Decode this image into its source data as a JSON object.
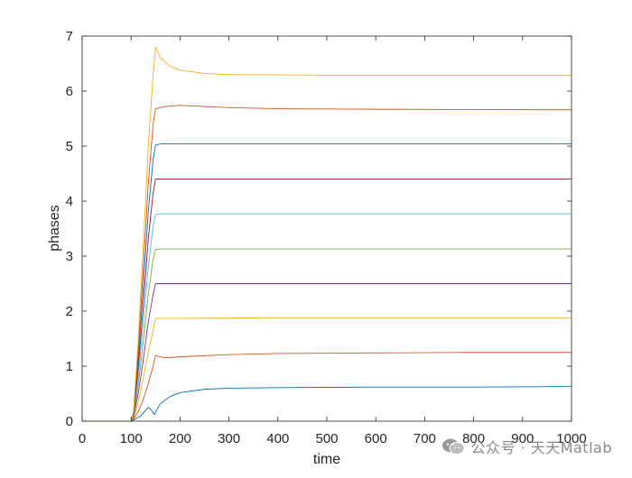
{
  "chart_data": {
    "type": "line",
    "title": "",
    "xlabel": "time",
    "ylabel": "phases",
    "xlim": [
      0,
      1000
    ],
    "ylim": [
      0,
      7
    ],
    "xticks": [
      0,
      100,
      200,
      300,
      400,
      500,
      600,
      700,
      800,
      900,
      1000
    ],
    "yticks": [
      0,
      1,
      2,
      3,
      4,
      5,
      6,
      7
    ],
    "grid": false,
    "legend": "none",
    "series": [
      {
        "color": "#0072BD",
        "points": [
          [
            0,
            0
          ],
          [
            100,
            0
          ],
          [
            105,
            0.02
          ],
          [
            120,
            0.1
          ],
          [
            130,
            0.2
          ],
          [
            135,
            0.25
          ],
          [
            140,
            0.22
          ],
          [
            145,
            0.15
          ],
          [
            148,
            0.12
          ],
          [
            152,
            0.2
          ],
          [
            160,
            0.32
          ],
          [
            180,
            0.45
          ],
          [
            200,
            0.52
          ],
          [
            250,
            0.58
          ],
          [
            300,
            0.6
          ],
          [
            400,
            0.61
          ],
          [
            600,
            0.62
          ],
          [
            800,
            0.62
          ],
          [
            1000,
            0.63
          ]
        ]
      },
      {
        "color": "#D95319",
        "points": [
          [
            0,
            0
          ],
          [
            100,
            0
          ],
          [
            105,
            0.03
          ],
          [
            115,
            0.18
          ],
          [
            125,
            0.4
          ],
          [
            135,
            0.68
          ],
          [
            145,
            1.0
          ],
          [
            150,
            1.2
          ],
          [
            155,
            1.18
          ],
          [
            170,
            1.15
          ],
          [
            200,
            1.17
          ],
          [
            300,
            1.21
          ],
          [
            400,
            1.23
          ],
          [
            600,
            1.24
          ],
          [
            800,
            1.25
          ],
          [
            1000,
            1.25
          ]
        ]
      },
      {
        "color": "#EDB120",
        "points": [
          [
            0,
            0
          ],
          [
            100,
            0
          ],
          [
            105,
            0.05
          ],
          [
            115,
            0.35
          ],
          [
            125,
            0.78
          ],
          [
            135,
            1.25
          ],
          [
            145,
            1.65
          ],
          [
            150,
            1.87
          ],
          [
            160,
            1.87
          ],
          [
            200,
            1.87
          ],
          [
            400,
            1.88
          ],
          [
            700,
            1.88
          ],
          [
            1000,
            1.88
          ]
        ]
      },
      {
        "color": "#7E2F8E",
        "points": [
          [
            0,
            0
          ],
          [
            100,
            0
          ],
          [
            105,
            0.07
          ],
          [
            115,
            0.52
          ],
          [
            125,
            1.12
          ],
          [
            135,
            1.8
          ],
          [
            145,
            2.3
          ],
          [
            150,
            2.5
          ],
          [
            160,
            2.5
          ],
          [
            300,
            2.5
          ],
          [
            600,
            2.5
          ],
          [
            1000,
            2.5
          ]
        ]
      },
      {
        "color": "#77AC30",
        "points": [
          [
            0,
            0
          ],
          [
            100,
            0
          ],
          [
            105,
            0.08
          ],
          [
            115,
            0.68
          ],
          [
            125,
            1.45
          ],
          [
            135,
            2.3
          ],
          [
            145,
            2.95
          ],
          [
            150,
            3.12
          ],
          [
            160,
            3.13
          ],
          [
            400,
            3.13
          ],
          [
            1000,
            3.13
          ]
        ]
      },
      {
        "color": "#4DBEEE",
        "points": [
          [
            0,
            0
          ],
          [
            100,
            0
          ],
          [
            105,
            0.1
          ],
          [
            115,
            0.85
          ],
          [
            125,
            1.78
          ],
          [
            135,
            2.8
          ],
          [
            145,
            3.55
          ],
          [
            150,
            3.76
          ],
          [
            160,
            3.77
          ],
          [
            400,
            3.77
          ],
          [
            1000,
            3.77
          ]
        ]
      },
      {
        "color": "#A2142F",
        "points": [
          [
            0,
            0
          ],
          [
            100,
            0
          ],
          [
            105,
            0.12
          ],
          [
            115,
            1.0
          ],
          [
            125,
            2.1
          ],
          [
            135,
            3.3
          ],
          [
            145,
            4.15
          ],
          [
            150,
            4.4
          ],
          [
            160,
            4.4
          ],
          [
            400,
            4.4
          ],
          [
            1000,
            4.4
          ]
        ]
      },
      {
        "color": "#0072BD",
        "points": [
          [
            0,
            0
          ],
          [
            100,
            0
          ],
          [
            105,
            0.14
          ],
          [
            115,
            1.18
          ],
          [
            125,
            2.45
          ],
          [
            135,
            3.8
          ],
          [
            145,
            4.75
          ],
          [
            150,
            5.02
          ],
          [
            160,
            5.04
          ],
          [
            400,
            5.04
          ],
          [
            1000,
            5.04
          ]
        ]
      },
      {
        "color": "#D95319",
        "points": [
          [
            0,
            0
          ],
          [
            100,
            0
          ],
          [
            105,
            0.16
          ],
          [
            115,
            1.35
          ],
          [
            125,
            2.8
          ],
          [
            135,
            4.3
          ],
          [
            145,
            5.4
          ],
          [
            150,
            5.68
          ],
          [
            170,
            5.72
          ],
          [
            200,
            5.74
          ],
          [
            300,
            5.7
          ],
          [
            400,
            5.68
          ],
          [
            600,
            5.67
          ],
          [
            1000,
            5.66
          ]
        ]
      },
      {
        "color": "#EDB120",
        "points": [
          [
            0,
            0
          ],
          [
            100,
            0
          ],
          [
            105,
            0.18
          ],
          [
            115,
            1.55
          ],
          [
            125,
            3.2
          ],
          [
            135,
            4.95
          ],
          [
            145,
            6.3
          ],
          [
            150,
            6.8
          ],
          [
            160,
            6.6
          ],
          [
            180,
            6.45
          ],
          [
            200,
            6.38
          ],
          [
            250,
            6.32
          ],
          [
            300,
            6.3
          ],
          [
            500,
            6.29
          ],
          [
            1000,
            6.29
          ]
        ]
      }
    ]
  },
  "watermark": {
    "text": "公众号 · 天天Matlab",
    "icon": "wechat-icon"
  }
}
